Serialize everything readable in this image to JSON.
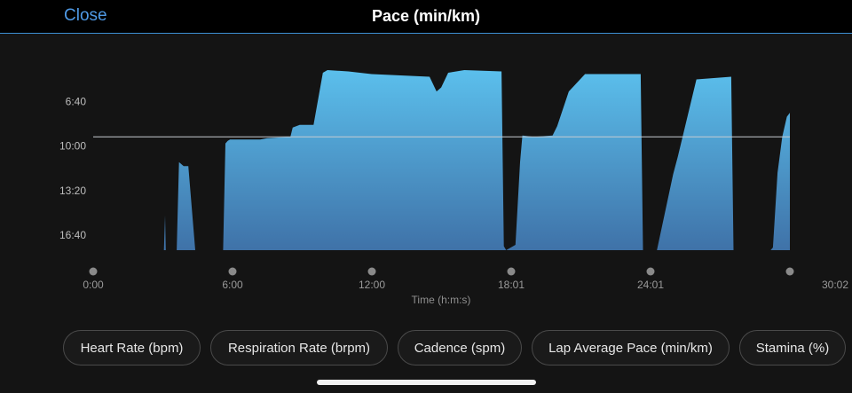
{
  "header": {
    "close_label": "Close",
    "title": "Pace (min/km)"
  },
  "chart_data": {
    "type": "area",
    "xlabel": "Time (h:m:s)",
    "x_ticks": [
      "0:00",
      "6:00",
      "12:00",
      "18:01",
      "24:01",
      "30:02"
    ],
    "x_range_min": [
      0,
      30.03
    ],
    "y_ticks": [
      "6:40",
      "10:00",
      "13:20",
      "16:40"
    ],
    "y_tick_values_min": [
      6.667,
      10.0,
      13.333,
      16.667
    ],
    "y_range_min": [
      3.9,
      17.8
    ],
    "y_inverted": true,
    "average_line_min": 9.3,
    "fill_color_top": "#5bbfec",
    "fill_color_bottom": "#3f72a8",
    "line_color": "#c8ccd2",
    "series": [
      {
        "x": [
          0,
          3.05,
          3.1,
          3.13,
          3.6,
          3.7,
          3.9,
          4.1,
          4.4,
          4.5,
          5.6,
          5.7,
          5.8,
          5.9,
          7.2,
          7.5,
          8.5,
          8.6,
          8.9,
          9.5,
          9.9,
          10.1,
          11.0,
          12.0,
          14.5,
          14.8,
          15.0,
          15.3,
          16.0,
          17.6,
          17.7,
          17.8,
          18.2,
          18.4,
          18.5,
          19.0,
          19.8,
          20.0,
          20.5,
          21.2,
          22.2,
          22.4,
          23.6,
          23.7,
          24.0,
          24.3,
          25.0,
          25.2,
          26.0,
          27.5,
          27.6,
          29.2,
          29.3,
          29.5,
          29.7,
          29.9,
          30.03
        ],
        "y": [
          17.8,
          17.8,
          15.2,
          17.8,
          17.8,
          11.2,
          11.5,
          11.5,
          17.8,
          17.8,
          17.8,
          9.8,
          9.6,
          9.5,
          9.5,
          9.4,
          9.3,
          8.6,
          8.4,
          8.4,
          4.5,
          4.3,
          4.4,
          4.6,
          4.8,
          5.9,
          5.6,
          4.5,
          4.3,
          4.4,
          17.5,
          17.8,
          17.4,
          11.2,
          9.2,
          9.3,
          9.2,
          8.5,
          5.9,
          4.6,
          4.6,
          4.6,
          4.6,
          17.8,
          17.8,
          17.8,
          12.1,
          10.8,
          5.0,
          4.8,
          17.8,
          17.8,
          17.6,
          12.0,
          9.3,
          7.8,
          7.5
        ]
      }
    ]
  },
  "metric_buttons": [
    "Heart Rate (bpm)",
    "Respiration Rate (brpm)",
    "Cadence (spm)",
    "Lap Average Pace (min/km)",
    "Stamina (%)"
  ]
}
